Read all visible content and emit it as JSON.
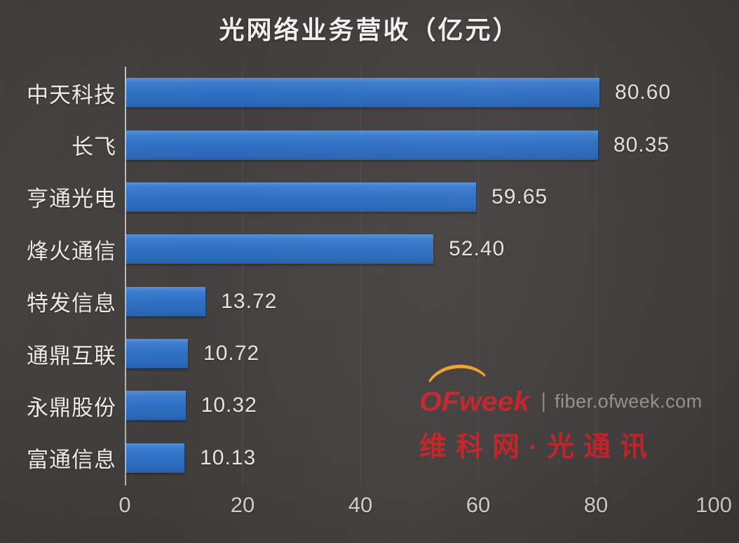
{
  "title": "光网络业务营收（亿元）",
  "chart_data": {
    "type": "bar",
    "orientation": "horizontal",
    "title": "光网络业务营收（亿元）",
    "xlabel": "",
    "ylabel": "",
    "categories": [
      "中天科技",
      "长飞",
      "亨通光电",
      "烽火通信",
      "特发信息",
      "通鼎互联",
      "永鼎股份",
      "富通信息"
    ],
    "values": [
      80.6,
      80.35,
      59.65,
      52.4,
      13.72,
      10.72,
      10.32,
      10.13
    ],
    "value_labels": [
      "80.60",
      "80.35",
      "59.65",
      "52.40",
      "13.72",
      "10.72",
      "10.32",
      "10.13"
    ],
    "x_ticks": [
      "0",
      "20",
      "40",
      "60",
      "80",
      "100"
    ],
    "xlim": [
      0,
      100
    ],
    "grid": "faint-vertical",
    "legend": "none",
    "bar_color": "#2f70c4",
    "background_color": "#3e3b3a",
    "text_color": "#edebe9"
  },
  "watermark": {
    "brand": "OFweek",
    "divider": "|",
    "site": "fiber.ofweek.com",
    "tagline": "维科网·光通讯",
    "brand_color": "#d0222a",
    "arc_color": "#efa229",
    "site_color": "#9b9b99"
  }
}
